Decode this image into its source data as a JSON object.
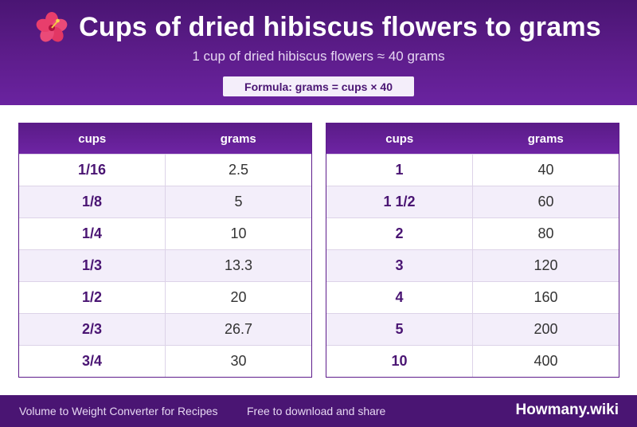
{
  "header": {
    "icon": "hibiscus-icon",
    "title": "Cups of dried hibiscus flowers to grams",
    "subtitle": "1 cup of dried hibiscus flowers ≈ 40 grams",
    "formula": "Formula: grams = cups × 40"
  },
  "tables": [
    {
      "headers": [
        "cups",
        "grams"
      ],
      "rows": [
        {
          "cups": "1/16",
          "grams": "2.5"
        },
        {
          "cups": "1/8",
          "grams": "5"
        },
        {
          "cups": "1/4",
          "grams": "10"
        },
        {
          "cups": "1/3",
          "grams": "13.3"
        },
        {
          "cups": "1/2",
          "grams": "20"
        },
        {
          "cups": "2/3",
          "grams": "26.7"
        },
        {
          "cups": "3/4",
          "grams": "30"
        }
      ]
    },
    {
      "headers": [
        "cups",
        "grams"
      ],
      "rows": [
        {
          "cups": "1",
          "grams": "40"
        },
        {
          "cups": "1 1/2",
          "grams": "60"
        },
        {
          "cups": "2",
          "grams": "80"
        },
        {
          "cups": "3",
          "grams": "120"
        },
        {
          "cups": "4",
          "grams": "160"
        },
        {
          "cups": "5",
          "grams": "200"
        },
        {
          "cups": "10",
          "grams": "400"
        }
      ]
    }
  ],
  "footer": {
    "left_text": "Volume to Weight Converter for Recipes",
    "mid_text": "Free to download and share",
    "brand": "Howmany.wiki"
  },
  "colors": {
    "header_bg": "#5e1d8c",
    "accent": "#4a1573",
    "row_alt": "#f3eefa"
  }
}
